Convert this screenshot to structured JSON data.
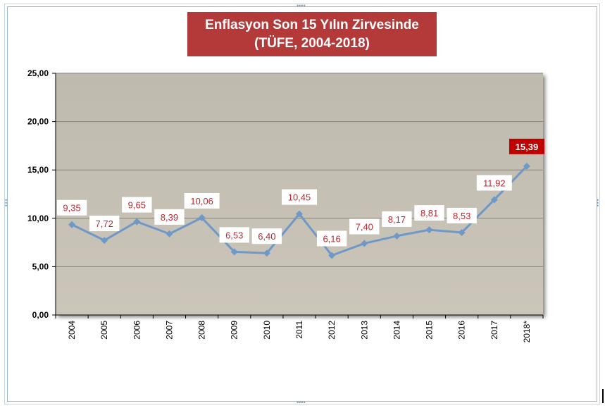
{
  "chart_data": {
    "type": "line",
    "title": "Enflasyon Son 15 Yılın Zirvesinde",
    "subtitle": "(TÜFE, 2004-2018)",
    "categories": [
      "2004",
      "2005",
      "2006",
      "2007",
      "2008",
      "2009",
      "2010",
      "2011",
      "2012",
      "2013",
      "2014",
      "2015",
      "2016",
      "2017",
      "2018*"
    ],
    "values": [
      9.35,
      7.72,
      9.65,
      8.39,
      10.06,
      6.53,
      6.4,
      10.45,
      6.16,
      7.4,
      8.17,
      8.81,
      8.53,
      11.92,
      15.39
    ],
    "data_labels": [
      "9,35",
      "7,72",
      "9,65",
      "8,39",
      "10,06",
      "6,53",
      "6,40",
      "10,45",
      "6,16",
      "7,40",
      "8,17",
      "8,81",
      "8,53",
      "11,92",
      "15,39"
    ],
    "ylim": [
      0,
      25
    ],
    "yticks": [
      "0,00",
      "5,00",
      "10,00",
      "15,00",
      "20,00",
      "25,00"
    ],
    "grid": true,
    "legend": "none",
    "colors": {
      "line": "#6e98c8",
      "plot_background": "#c8c3b6",
      "title_background": "#b43a3a",
      "label_text": "#c0272d",
      "highlight_label_background": "#c00000"
    },
    "highlight_last_point": true
  }
}
